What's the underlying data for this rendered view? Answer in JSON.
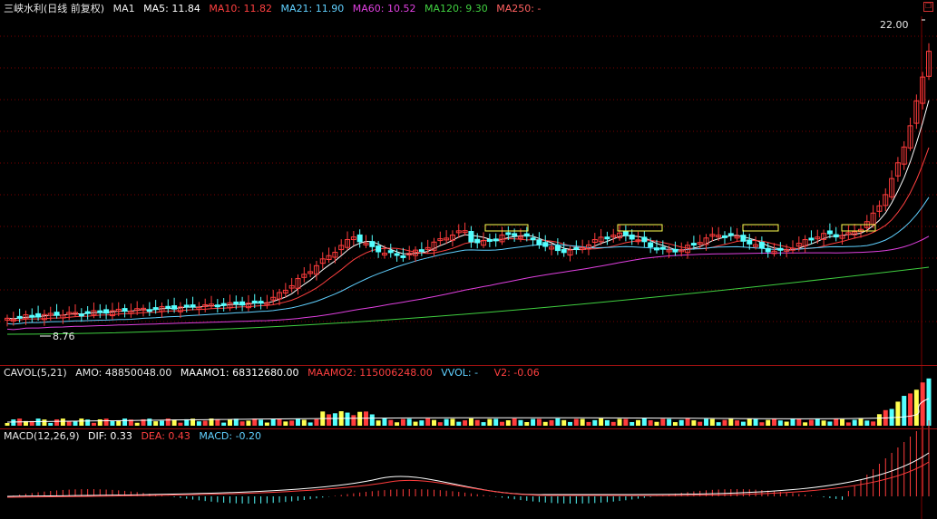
{
  "colors": {
    "background": "#000000",
    "grid": "#7a0000",
    "up": "#ff3c3c",
    "down": "#54ffff",
    "ma5": "#ffffff",
    "ma10": "#ff4040",
    "ma21": "#60d0ff",
    "ma60": "#e040e0",
    "ma120": "#40d040",
    "yellow": "#ffff50",
    "header_title": "#e8e8e8"
  },
  "main_panel": {
    "title": "三峡水利(日线 前复权)",
    "indicator_name": "MA1",
    "ma5": {
      "label": "MA5: 11.84"
    },
    "ma10": {
      "label": "MA10: 11.82"
    },
    "ma21": {
      "label": "MA21: 11.90"
    },
    "ma60": {
      "label": "MA60: 10.52"
    },
    "ma120": {
      "label": "MA120: 9.30"
    },
    "ma250": {
      "label": "MA250: -"
    },
    "high_marker": "22.00",
    "low_marker": "8.76"
  },
  "volume_panel": {
    "name": "CAVOL(5,21)",
    "amo": "AMO: 48850048.00",
    "maamo1": "MAAMO1: 68312680.00",
    "maamo2": "MAAMO2: 115006248.00",
    "vvol": "VVOL: -",
    "v2": "V2: -0.06"
  },
  "macd_panel": {
    "name": "MACD(12,26,9)",
    "dif": "DIF: 0.33",
    "dea": "DEA: 0.43",
    "macd": "MACD: -0.20"
  },
  "window": {
    "restore_icon": "restore-icon"
  }
}
